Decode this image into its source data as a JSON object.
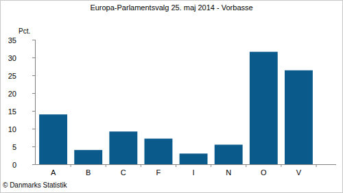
{
  "chart_data": {
    "type": "bar",
    "title": "Europa-Parlamentsvalg 25. maj 2014 - Vorbasse",
    "ylabel": "Pct.",
    "source": "© Danmarks Statistik",
    "categories": [
      "A",
      "B",
      "C",
      "F",
      "I",
      "N",
      "O",
      "V"
    ],
    "values": [
      14,
      4,
      9.2,
      7.2,
      3,
      5.5,
      31.6,
      26.4
    ],
    "color": "#0b5a8c",
    "ylim": [
      0,
      35
    ],
    "yticks": [
      0,
      5,
      10,
      15,
      20,
      25,
      30,
      35
    ],
    "grid": false
  }
}
